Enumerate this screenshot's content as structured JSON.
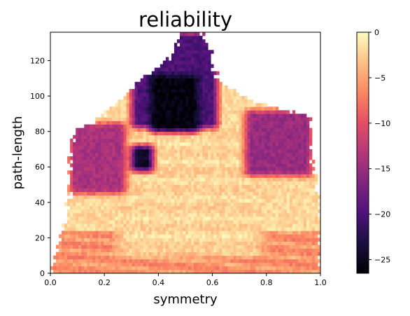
{
  "chart_data": {
    "type": "heatmap",
    "title": "reliability",
    "xlabel": "symmetry",
    "ylabel": "path-length",
    "xlim": [
      0.0,
      1.0
    ],
    "ylim": [
      0,
      136
    ],
    "x_ticks": [
      0.0,
      0.2,
      0.4,
      0.6,
      0.8,
      1.0
    ],
    "x_tick_labels": [
      "0.0",
      "0.2",
      "0.4",
      "0.6",
      "0.8",
      "1.0"
    ],
    "y_ticks": [
      0,
      20,
      40,
      60,
      80,
      100,
      120
    ],
    "y_tick_labels": [
      "0",
      "20",
      "40",
      "60",
      "80",
      "100",
      "120"
    ],
    "colormap": "magma",
    "colorbar": {
      "range": [
        -26.5,
        0
      ],
      "ticks": [
        0,
        -5,
        -10,
        -15,
        -20,
        -25
      ],
      "tick_labels": [
        "0",
        "−5",
        "−10",
        "−15",
        "−20",
        "−25"
      ]
    },
    "grid": false,
    "envelope_note_free": true,
    "envelope": [
      {
        "y": 0,
        "x0": 0.0,
        "x1": 1.0
      },
      {
        "y": 12,
        "x0": 0.02,
        "x1": 1.0
      },
      {
        "y": 28,
        "x0": 0.05,
        "x1": 1.0
      },
      {
        "y": 45,
        "x0": 0.07,
        "x1": 0.99
      },
      {
        "y": 65,
        "x0": 0.07,
        "x1": 0.97
      },
      {
        "y": 80,
        "x0": 0.09,
        "x1": 0.97
      },
      {
        "y": 88,
        "x0": 0.19,
        "x1": 0.96
      },
      {
        "y": 98,
        "x0": 0.26,
        "x1": 0.74
      },
      {
        "y": 108,
        "x0": 0.33,
        "x1": 0.62
      },
      {
        "y": 118,
        "x0": 0.42,
        "x1": 0.6
      },
      {
        "y": 128,
        "x0": 0.46,
        "x1": 0.59
      },
      {
        "y": 136,
        "x0": 0.49,
        "x1": 0.56
      }
    ],
    "regions": [
      {
        "name": "core-high",
        "x0": 0.25,
        "x1": 0.78,
        "y0": 10,
        "y1": 82,
        "value": -1.5
      },
      {
        "name": "lower-band",
        "x0": 0.0,
        "x1": 1.0,
        "y0": 0,
        "y1": 25,
        "value": -5
      },
      {
        "name": "left-lobe",
        "x0": 0.07,
        "x1": 0.28,
        "y0": 45,
        "y1": 85,
        "value": -14
      },
      {
        "name": "right-lobe",
        "x0": 0.72,
        "x1": 0.97,
        "y0": 55,
        "y1": 92,
        "value": -15
      },
      {
        "name": "upper-spire",
        "x0": 0.3,
        "x1": 0.62,
        "y0": 82,
        "y1": 136,
        "value": -20
      },
      {
        "name": "dark-core",
        "x0": 0.37,
        "x1": 0.55,
        "y0": 80,
        "y1": 112,
        "value": -26
      },
      {
        "name": "dark-spot",
        "x0": 0.3,
        "x1": 0.38,
        "y0": 58,
        "y1": 72,
        "value": -25
      }
    ]
  }
}
